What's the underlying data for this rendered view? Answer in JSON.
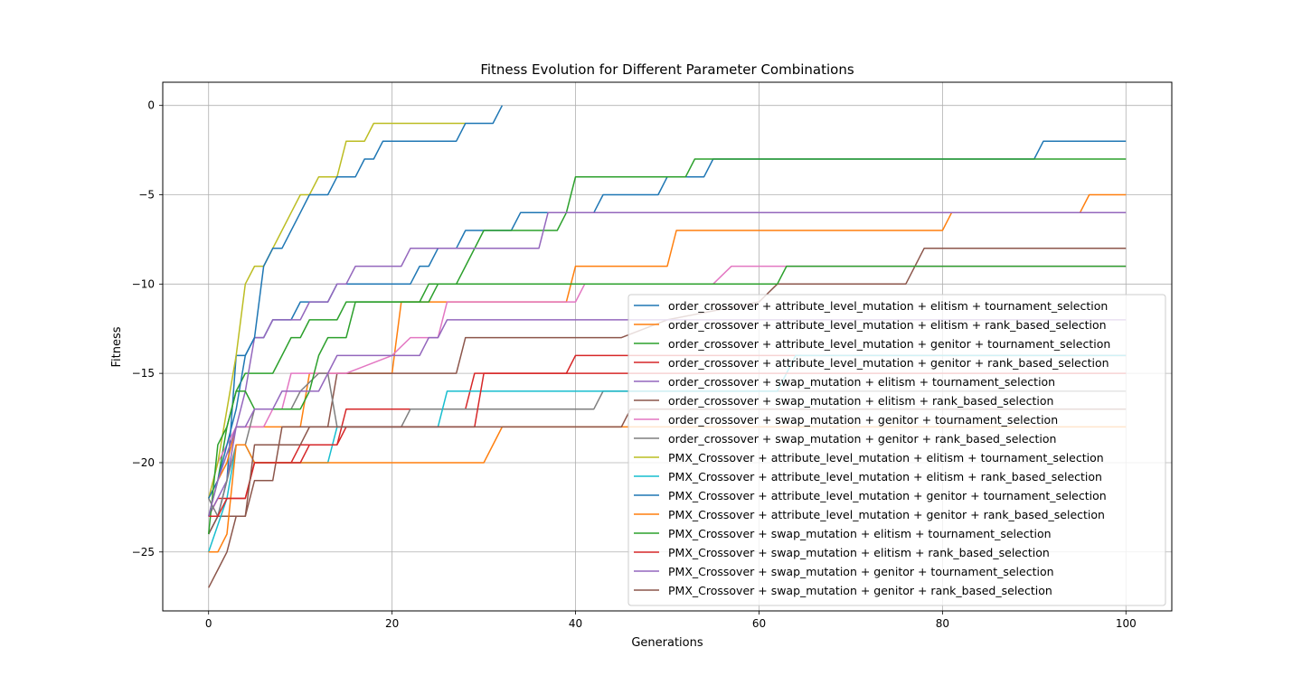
{
  "chart_data": {
    "type": "line",
    "title": "Fitness Evolution for Different Parameter Combinations",
    "xlabel": "Generations",
    "ylabel": "Fitness",
    "xlim": [
      -5,
      105
    ],
    "ylim": [
      -28.3,
      1.3
    ],
    "xticks": [
      0,
      20,
      40,
      60,
      80,
      100
    ],
    "yticks": [
      0,
      -5,
      -10,
      -15,
      -20,
      -25
    ],
    "grid": true,
    "legend_placement": "lower right",
    "series": [
      {
        "name": "order_crossover + attribute_level_mutation + elitism + tournament_selection",
        "color": "#1f77b4",
        "points": [
          [
            0,
            -24
          ],
          [
            1,
            -23
          ],
          [
            2,
            -21
          ],
          [
            3,
            -14
          ],
          [
            4,
            -14
          ],
          [
            5,
            -13
          ],
          [
            6,
            -13
          ],
          [
            7,
            -12
          ],
          [
            8,
            -12
          ],
          [
            9,
            -12
          ],
          [
            10,
            -11
          ],
          [
            11,
            -11
          ],
          [
            12,
            -11
          ],
          [
            13,
            -11
          ],
          [
            14,
            -10
          ],
          [
            22,
            -10
          ],
          [
            23,
            -9
          ],
          [
            24,
            -9
          ],
          [
            25,
            -8
          ],
          [
            27,
            -8
          ],
          [
            28,
            -7
          ],
          [
            33,
            -7
          ],
          [
            34,
            -6
          ],
          [
            41,
            -6
          ],
          [
            42,
            -6
          ],
          [
            43,
            -5
          ],
          [
            49,
            -5
          ],
          [
            50,
            -4
          ],
          [
            54,
            -4
          ],
          [
            55,
            -3
          ],
          [
            90,
            -3
          ],
          [
            91,
            -2
          ],
          [
            100,
            -2
          ]
        ]
      },
      {
        "name": "order_crossover + attribute_level_mutation + elitism + rank_based_selection",
        "color": "#ff7f0e",
        "points": [
          [
            0,
            -22
          ],
          [
            1,
            -21
          ],
          [
            2,
            -20
          ],
          [
            3,
            -18
          ],
          [
            10,
            -18
          ],
          [
            11,
            -15
          ],
          [
            20,
            -15
          ],
          [
            21,
            -11
          ],
          [
            39,
            -11
          ],
          [
            40,
            -9
          ],
          [
            50,
            -9
          ],
          [
            51,
            -7
          ],
          [
            80,
            -7
          ],
          [
            81,
            -6
          ],
          [
            95,
            -6
          ],
          [
            96,
            -5
          ],
          [
            100,
            -5
          ]
        ]
      },
      {
        "name": "order_crossover + attribute_level_mutation + genitor + tournament_selection",
        "color": "#2ca02c",
        "points": [
          [
            0,
            -23
          ],
          [
            1,
            -21
          ],
          [
            2,
            -18
          ],
          [
            3,
            -16
          ],
          [
            4,
            -15
          ],
          [
            7,
            -15
          ],
          [
            8,
            -14
          ],
          [
            9,
            -13
          ],
          [
            10,
            -13
          ],
          [
            11,
            -12
          ],
          [
            14,
            -12
          ],
          [
            15,
            -11
          ],
          [
            24,
            -11
          ],
          [
            25,
            -10
          ],
          [
            27,
            -10
          ],
          [
            28,
            -9
          ],
          [
            30,
            -7
          ],
          [
            38,
            -7
          ],
          [
            39,
            -6
          ],
          [
            40,
            -4
          ],
          [
            52,
            -4
          ],
          [
            53,
            -3
          ],
          [
            100,
            -3
          ]
        ]
      },
      {
        "name": "order_crossover + attribute_level_mutation + genitor + rank_based_selection",
        "color": "#d62728",
        "points": [
          [
            0,
            -23
          ],
          [
            1,
            -22
          ],
          [
            4,
            -22
          ],
          [
            5,
            -20
          ],
          [
            9,
            -20
          ],
          [
            10,
            -19
          ],
          [
            14,
            -19
          ],
          [
            15,
            -17
          ],
          [
            28,
            -17
          ],
          [
            29,
            -15
          ],
          [
            39,
            -15
          ],
          [
            40,
            -14
          ],
          [
            100,
            -14
          ]
        ]
      },
      {
        "name": "order_crossover + swap_mutation + elitism + tournament_selection",
        "color": "#9467bd",
        "points": [
          [
            0,
            -23
          ],
          [
            2,
            -21
          ],
          [
            3,
            -18
          ],
          [
            4,
            -16
          ],
          [
            5,
            -13
          ],
          [
            6,
            -13
          ],
          [
            7,
            -12
          ],
          [
            10,
            -12
          ],
          [
            11,
            -11
          ],
          [
            13,
            -11
          ],
          [
            14,
            -10
          ],
          [
            15,
            -10
          ],
          [
            16,
            -9
          ],
          [
            21,
            -9
          ],
          [
            22,
            -8
          ],
          [
            36,
            -8
          ],
          [
            37,
            -6
          ],
          [
            100,
            -6
          ]
        ]
      },
      {
        "name": "order_crossover + swap_mutation + elitism + rank_based_selection",
        "color": "#8c564b",
        "points": [
          [
            0,
            -24
          ],
          [
            1,
            -23
          ],
          [
            4,
            -23
          ],
          [
            5,
            -21
          ],
          [
            7,
            -21
          ],
          [
            8,
            -18
          ],
          [
            13,
            -18
          ],
          [
            14,
            -15
          ],
          [
            27,
            -15
          ],
          [
            28,
            -13
          ],
          [
            45,
            -13
          ],
          [
            50,
            -12
          ],
          [
            60,
            -11
          ],
          [
            62,
            -10
          ],
          [
            76,
            -10
          ],
          [
            78,
            -8
          ],
          [
            100,
            -8
          ]
        ]
      },
      {
        "name": "order_crossover + swap_mutation + genitor + tournament_selection",
        "color": "#e377c2",
        "points": [
          [
            0,
            -22
          ],
          [
            1,
            -20
          ],
          [
            2,
            -19
          ],
          [
            3,
            -18
          ],
          [
            6,
            -18
          ],
          [
            7,
            -17
          ],
          [
            8,
            -17
          ],
          [
            9,
            -15
          ],
          [
            11,
            -15
          ],
          [
            12,
            -15
          ],
          [
            15,
            -15
          ],
          [
            20,
            -14
          ],
          [
            22,
            -13
          ],
          [
            25,
            -13
          ],
          [
            26,
            -11
          ],
          [
            40,
            -11
          ],
          [
            41,
            -10
          ],
          [
            55,
            -10
          ],
          [
            57,
            -9
          ],
          [
            100,
            -9
          ]
        ]
      },
      {
        "name": "order_crossover + swap_mutation + genitor + rank_based_selection",
        "color": "#7f7f7f",
        "points": [
          [
            0,
            -22
          ],
          [
            1,
            -23
          ],
          [
            2,
            -21
          ],
          [
            3,
            -19
          ],
          [
            4,
            -19
          ],
          [
            5,
            -17
          ],
          [
            9,
            -17
          ],
          [
            10,
            -16
          ],
          [
            12,
            -15
          ],
          [
            13,
            -15
          ],
          [
            14,
            -18
          ],
          [
            21,
            -18
          ],
          [
            22,
            -17
          ],
          [
            42,
            -17
          ],
          [
            43,
            -16
          ],
          [
            100,
            -16
          ]
        ]
      },
      {
        "name": "PMX_Crossover + attribute_level_mutation + elitism + tournament_selection",
        "color": "#bcbd22",
        "points": [
          [
            0,
            -22
          ],
          [
            1,
            -20
          ],
          [
            3,
            -14
          ],
          [
            4,
            -10
          ],
          [
            5,
            -9
          ],
          [
            6,
            -9
          ],
          [
            7,
            -8
          ],
          [
            8,
            -7
          ],
          [
            9,
            -6
          ],
          [
            10,
            -5
          ],
          [
            11,
            -5
          ],
          [
            12,
            -4
          ],
          [
            14,
            -4
          ],
          [
            15,
            -2
          ],
          [
            17,
            -2
          ],
          [
            18,
            -1
          ],
          [
            28,
            -1
          ]
        ]
      },
      {
        "name": "PMX_Crossover + attribute_level_mutation + elitism + rank_based_selection",
        "color": "#17becf",
        "points": [
          [
            0,
            -25
          ],
          [
            2,
            -22
          ],
          [
            3,
            -19
          ],
          [
            4,
            -19
          ],
          [
            5,
            -20
          ],
          [
            13,
            -20
          ],
          [
            14,
            -18
          ],
          [
            25,
            -18
          ],
          [
            26,
            -16
          ],
          [
            62,
            -16
          ],
          [
            64,
            -14
          ],
          [
            100,
            -14
          ]
        ]
      },
      {
        "name": "PMX_Crossover + attribute_level_mutation + genitor + tournament_selection",
        "color": "#1f77b4",
        "points": [
          [
            0,
            -22
          ],
          [
            1,
            -21
          ],
          [
            2,
            -19
          ],
          [
            3,
            -17
          ],
          [
            4,
            -14
          ],
          [
            5,
            -13
          ],
          [
            6,
            -9
          ],
          [
            7,
            -8
          ],
          [
            8,
            -8
          ],
          [
            10,
            -6
          ],
          [
            11,
            -5
          ],
          [
            13,
            -5
          ],
          [
            14,
            -4
          ],
          [
            16,
            -4
          ],
          [
            17,
            -3
          ],
          [
            18,
            -3
          ],
          [
            19,
            -2
          ],
          [
            27,
            -2
          ],
          [
            28,
            -1
          ],
          [
            31,
            -1
          ],
          [
            32,
            0
          ]
        ]
      },
      {
        "name": "PMX_Crossover + attribute_level_mutation + genitor + rank_based_selection",
        "color": "#ff7f0e",
        "points": [
          [
            0,
            -25
          ],
          [
            1,
            -25
          ],
          [
            2,
            -24
          ],
          [
            3,
            -19
          ],
          [
            4,
            -19
          ],
          [
            5,
            -20
          ],
          [
            30,
            -20
          ],
          [
            32,
            -18
          ],
          [
            100,
            -18
          ]
        ]
      },
      {
        "name": "PMX_Crossover + swap_mutation + elitism + tournament_selection",
        "color": "#2ca02c",
        "points": [
          [
            0,
            -24
          ],
          [
            1,
            -19
          ],
          [
            2,
            -18
          ],
          [
            3,
            -16
          ],
          [
            4,
            -16
          ],
          [
            5,
            -17
          ],
          [
            10,
            -17
          ],
          [
            11,
            -16
          ],
          [
            12,
            -14
          ],
          [
            13,
            -13
          ],
          [
            15,
            -13
          ],
          [
            16,
            -11
          ],
          [
            20,
            -11
          ],
          [
            23,
            -11
          ],
          [
            24,
            -10
          ],
          [
            62,
            -10
          ],
          [
            63,
            -9
          ],
          [
            100,
            -9
          ]
        ]
      },
      {
        "name": "PMX_Crossover + swap_mutation + elitism + rank_based_selection",
        "color": "#d62728",
        "points": [
          [
            0,
            -23
          ],
          [
            1,
            -23
          ],
          [
            2,
            -22
          ],
          [
            3,
            -22
          ],
          [
            4,
            -22
          ],
          [
            5,
            -20
          ],
          [
            10,
            -20
          ],
          [
            11,
            -19
          ],
          [
            14,
            -19
          ],
          [
            15,
            -18
          ],
          [
            29,
            -18
          ],
          [
            30,
            -15
          ],
          [
            100,
            -15
          ]
        ]
      },
      {
        "name": "PMX_Crossover + swap_mutation + genitor + tournament_selection",
        "color": "#9467bd",
        "points": [
          [
            0,
            -23
          ],
          [
            1,
            -21
          ],
          [
            3,
            -18
          ],
          [
            4,
            -18
          ],
          [
            5,
            -17
          ],
          [
            6,
            -17
          ],
          [
            7,
            -17
          ],
          [
            8,
            -16
          ],
          [
            12,
            -16
          ],
          [
            14,
            -14
          ],
          [
            23,
            -14
          ],
          [
            24,
            -13
          ],
          [
            25,
            -13
          ],
          [
            26,
            -12
          ],
          [
            100,
            -12
          ]
        ]
      },
      {
        "name": "PMX_Crossover + swap_mutation + genitor + rank_based_selection",
        "color": "#8c564b",
        "points": [
          [
            0,
            -27
          ],
          [
            1,
            -26
          ],
          [
            2,
            -25
          ],
          [
            3,
            -23
          ],
          [
            4,
            -23
          ],
          [
            5,
            -19
          ],
          [
            10,
            -19
          ],
          [
            11,
            -18
          ],
          [
            45,
            -18
          ],
          [
            46,
            -17
          ],
          [
            100,
            -17
          ]
        ]
      }
    ]
  }
}
